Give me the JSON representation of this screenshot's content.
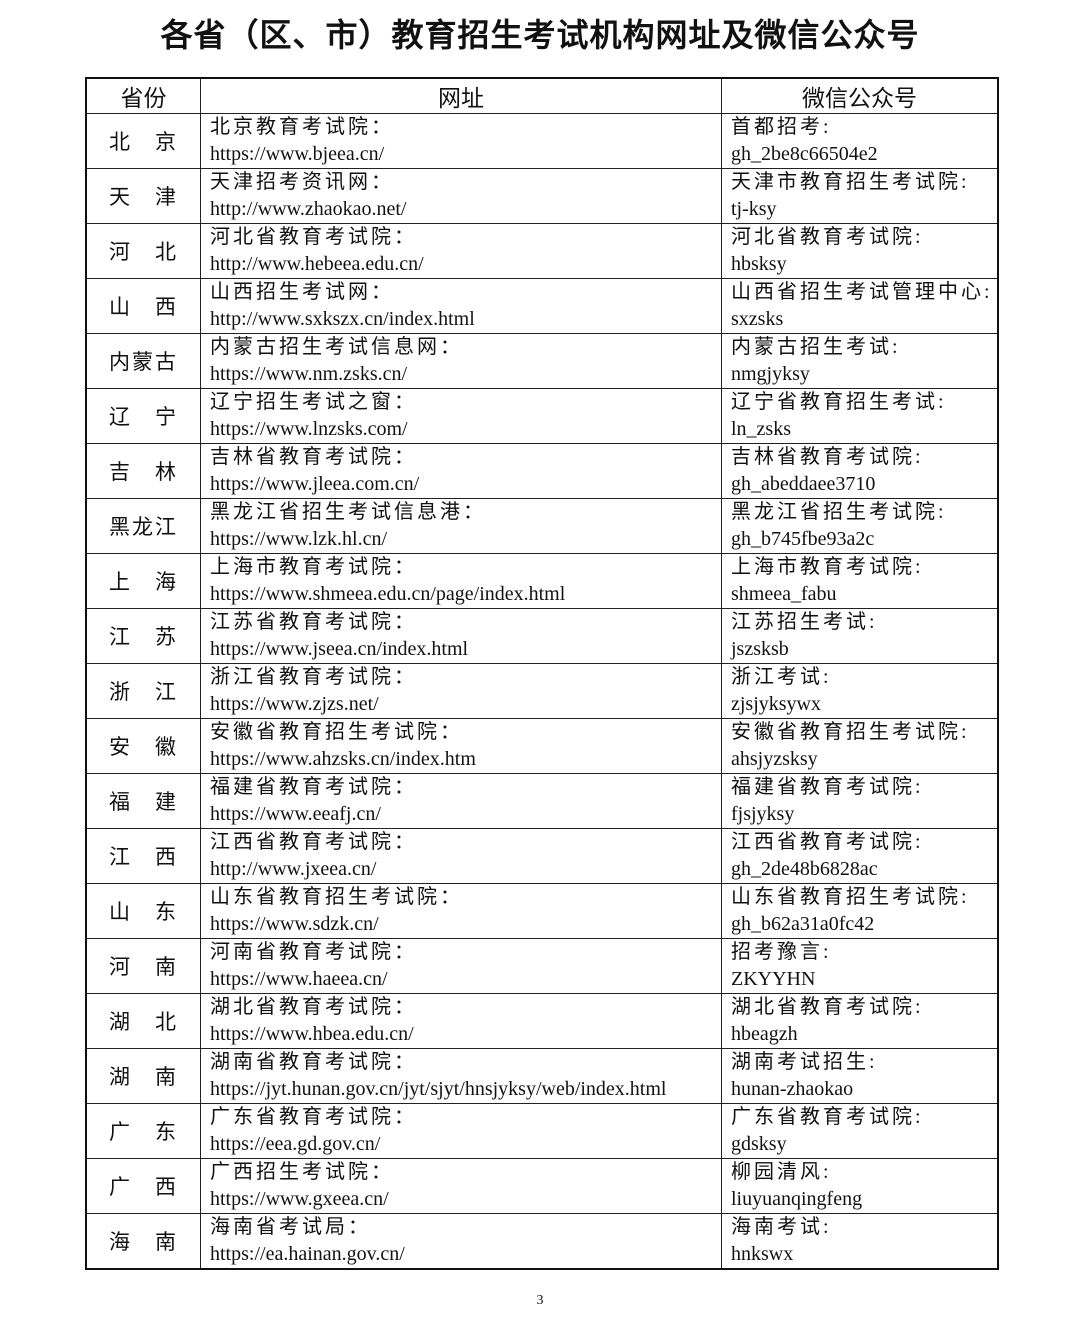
{
  "title": "各省（区、市）教育招生考试机构网址及微信公众号",
  "headers": {
    "province": "省份",
    "website": "网址",
    "wechat": "微信公众号"
  },
  "rows": [
    {
      "province": "北　京",
      "site_name": "北京教育考试院：",
      "url": "https://www.bjeea.cn/",
      "wechat_name": "首都招考:",
      "wechat_id": "gh_2be8c66504e2"
    },
    {
      "province": "天　津",
      "site_name": "天津招考资讯网：",
      "url": "http://www.zhaokao.net/",
      "wechat_name": "天津市教育招生考试院:",
      "wechat_id": "tj-ksy"
    },
    {
      "province": "河　北",
      "site_name": "河北省教育考试院：",
      "url": "http://www.hebeea.edu.cn/",
      "wechat_name": "河北省教育考试院:",
      "wechat_id": "hbsksy"
    },
    {
      "province": "山　西",
      "site_name": "山西招生考试网：",
      "url": "http://www.sxkszx.cn/index.html",
      "wechat_name": "山西省招生考试管理中心:",
      "wechat_id": "sxzsks"
    },
    {
      "province": "内蒙古",
      "site_name": "内蒙古招生考试信息网：",
      "url": "https://www.nm.zsks.cn/",
      "wechat_name": "内蒙古招生考试:",
      "wechat_id": "nmgjyksy"
    },
    {
      "province": "辽　宁",
      "site_name": "辽宁招生考试之窗：",
      "url": "https://www.lnzsks.com/",
      "wechat_name": "辽宁省教育招生考试:",
      "wechat_id": "ln_zsks"
    },
    {
      "province": "吉　林",
      "site_name": "吉林省教育考试院：",
      "url": "https://www.jleea.com.cn/",
      "wechat_name": "吉林省教育考试院:",
      "wechat_id": "gh_abeddaee3710"
    },
    {
      "province": "黑龙江",
      "site_name": "黑龙江省招生考试信息港：",
      "url": "https://www.lzk.hl.cn/",
      "wechat_name": "黑龙江省招生考试院:",
      "wechat_id": "gh_b745fbe93a2c"
    },
    {
      "province": "上　海",
      "site_name": "上海市教育考试院：",
      "url": "https://www.shmeea.edu.cn/page/index.html",
      "wechat_name": "上海市教育考试院:",
      "wechat_id": "shmeea_fabu"
    },
    {
      "province": "江　苏",
      "site_name": "江苏省教育考试院：",
      "url": "https://www.jseea.cn/index.html",
      "wechat_name": "江苏招生考试:",
      "wechat_id": "jszsksb"
    },
    {
      "province": "浙　江",
      "site_name": "浙江省教育考试院：",
      "url": "https://www.zjzs.net/",
      "wechat_name": "浙江考试:",
      "wechat_id": "zjsjyksywx"
    },
    {
      "province": "安　徽",
      "site_name": "安徽省教育招生考试院：",
      "url": "https://www.ahzsks.cn/index.htm",
      "wechat_name": "安徽省教育招生考试院:",
      "wechat_id": "ahsjyzsksy"
    },
    {
      "province": "福　建",
      "site_name": "福建省教育考试院：",
      "url": "https://www.eeafj.cn/",
      "wechat_name": "福建省教育考试院:",
      "wechat_id": "fjsjyksy"
    },
    {
      "province": "江　西",
      "site_name": "江西省教育考试院：",
      "url": "http://www.jxeea.cn/",
      "wechat_name": "江西省教育考试院:",
      "wechat_id": "gh_2de48b6828ac"
    },
    {
      "province": "山　东",
      "site_name": "山东省教育招生考试院：",
      "url": "https://www.sdzk.cn/",
      "wechat_name": "山东省教育招生考试院:",
      "wechat_id": "gh_b62a31a0fc42"
    },
    {
      "province": "河　南",
      "site_name": "河南省教育考试院：",
      "url": "https://www.haeea.cn/",
      "wechat_name": "招考豫言:",
      "wechat_id": "ZKYYHN"
    },
    {
      "province": "湖　北",
      "site_name": "湖北省教育考试院：",
      "url": "https://www.hbea.edu.cn/",
      "wechat_name": "湖北省教育考试院:",
      "wechat_id": "hbeagzh"
    },
    {
      "province": "湖　南",
      "site_name": "湖南省教育考试院：",
      "url": "https://jyt.hunan.gov.cn/jyt/sjyt/hnsjyksy/web/index.html",
      "wechat_name": "湖南考试招生:",
      "wechat_id": "hunan-zhaokao"
    },
    {
      "province": "广　东",
      "site_name": "广东省教育考试院：",
      "url": "https://eea.gd.gov.cn/",
      "wechat_name": "广东省教育考试院:",
      "wechat_id": "gdsksy"
    },
    {
      "province": "广　西",
      "site_name": "广西招生考试院：",
      "url": "https://www.gxeea.cn/",
      "wechat_name": "柳园清风:",
      "wechat_id": "liuyuanqingfeng"
    },
    {
      "province": "海　南",
      "site_name": "海南省考试局：",
      "url": "https://ea.hainan.gov.cn/",
      "wechat_name": "海南考试:",
      "wechat_id": "hnkswx"
    }
  ],
  "page_number": "3"
}
